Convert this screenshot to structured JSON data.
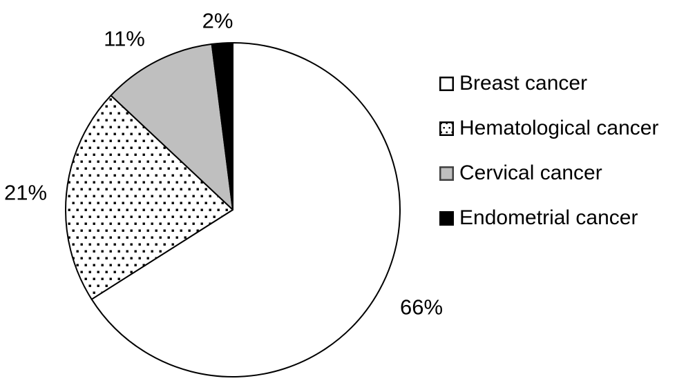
{
  "background_color": "#FFFFFF",
  "stroke_color": "#000000",
  "chart_data": {
    "type": "pie",
    "title": "",
    "categories": [
      "Breast cancer",
      "Hematological cancer",
      "Cervical cancer",
      "Endometrial cancer"
    ],
    "values": [
      66,
      21,
      11,
      2
    ],
    "legend_position": "right",
    "start_angle_deg": 0,
    "direction": "clockwise",
    "slices": [
      {
        "id": "breast",
        "label": "Breast cancer",
        "value": 66,
        "pct_label": "66%",
        "fill": "#FFFFFF",
        "swatch_border": "#000000"
      },
      {
        "id": "hematological",
        "label": "Hematological cancer",
        "value": 21,
        "pct_label": "21%",
        "fill": "dots",
        "swatch_border": "#000000"
      },
      {
        "id": "cervical",
        "label": "Cervical cancer",
        "value": 11,
        "pct_label": "11%",
        "fill": "#BFBFBF",
        "swatch_border": "#404040"
      },
      {
        "id": "endometrial",
        "label": "Endometrial cancer",
        "value": 2,
        "pct_label": "2%",
        "fill": "#000000",
        "swatch_border": "#000000"
      }
    ]
  }
}
